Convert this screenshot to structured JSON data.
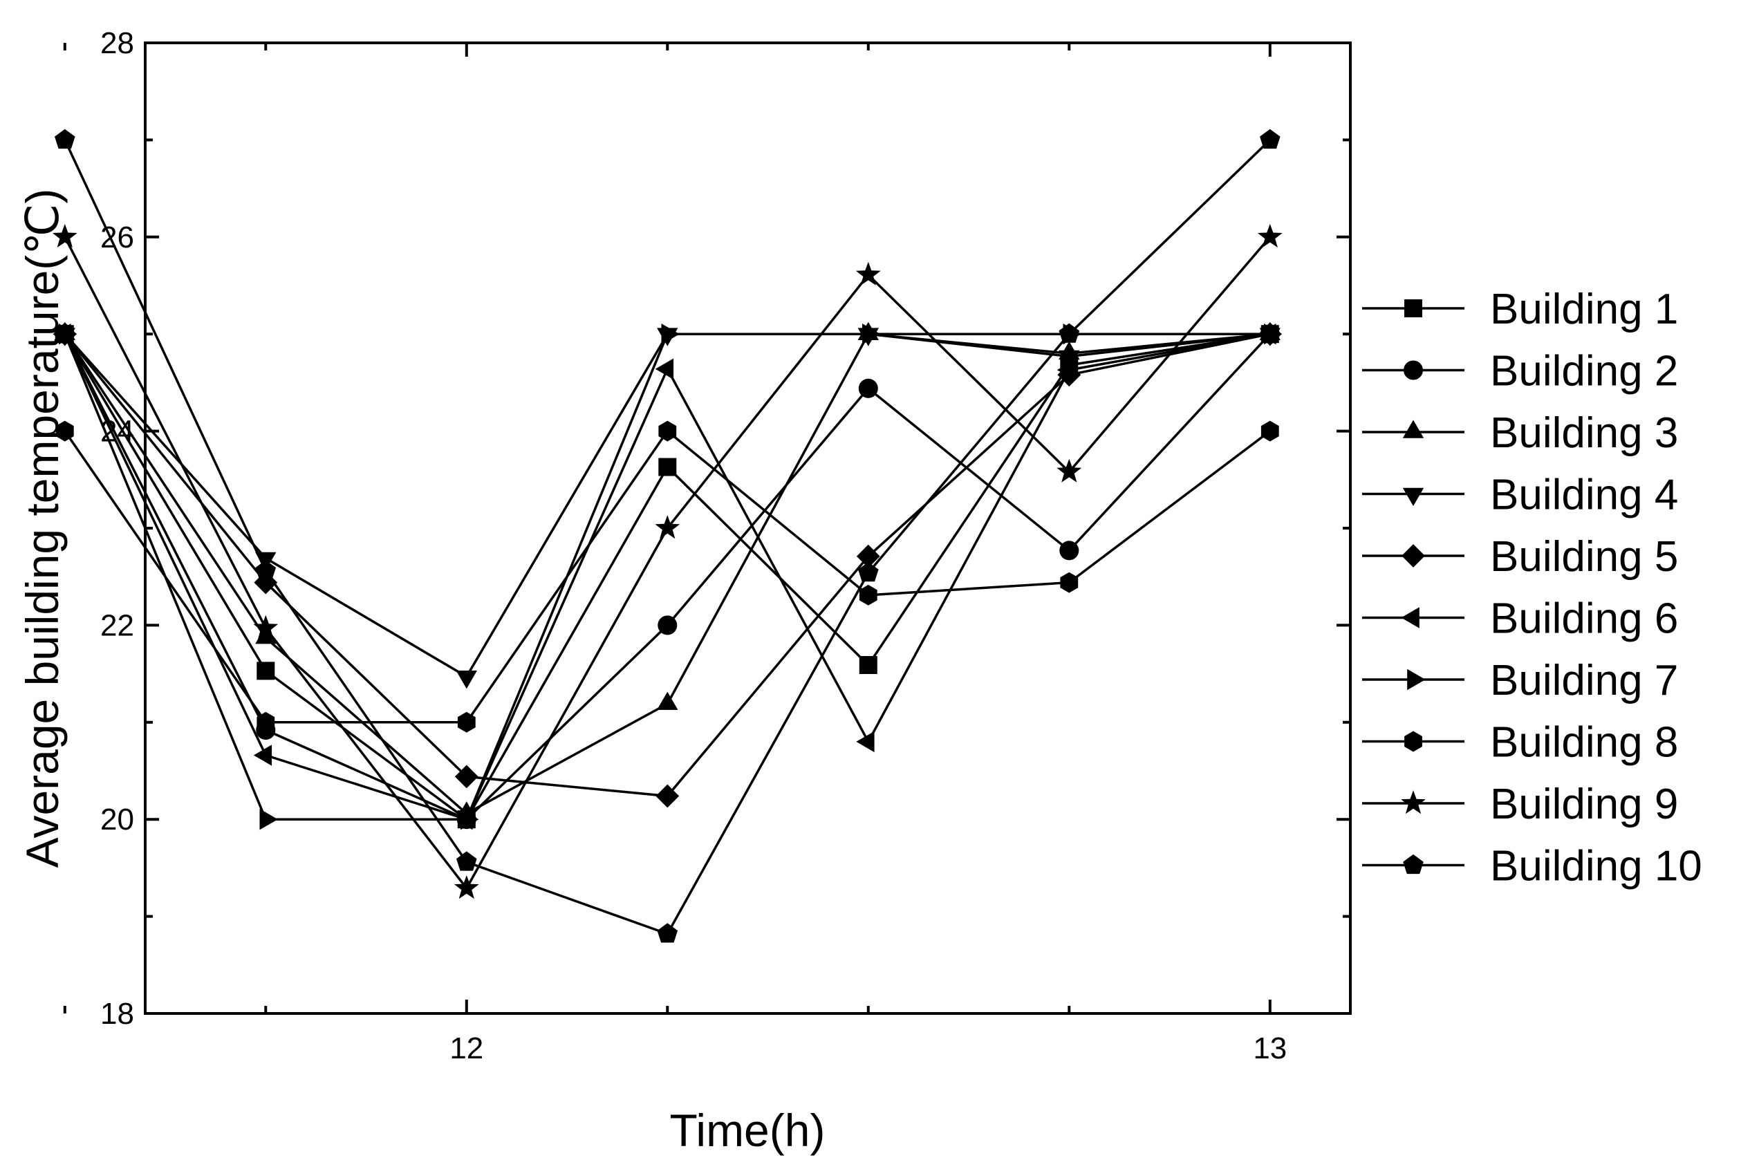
{
  "chart_data": {
    "type": "line",
    "title": "",
    "xlabel": "Time(h)",
    "ylabel": "Average building temperature(℃)",
    "xlim": [
      11.6,
      13.1
    ],
    "ylim": [
      18,
      28
    ],
    "x_ticks": [
      {
        "value": 12,
        "label": "12"
      },
      {
        "value": 13,
        "label": "13"
      }
    ],
    "y_ticks": [
      {
        "value": 18,
        "label": "18"
      },
      {
        "value": 20,
        "label": "20"
      },
      {
        "value": 22,
        "label": "22"
      },
      {
        "value": 24,
        "label": "24"
      },
      {
        "value": 26,
        "label": "26"
      },
      {
        "value": 28,
        "label": "28"
      }
    ],
    "grid": false,
    "legend_position": "right",
    "x": [
      11.5,
      11.75,
      12.0,
      12.25,
      12.5,
      12.75,
      13.0
    ],
    "series": [
      {
        "name": "Building 1",
        "marker": "square",
        "values": [
          25,
          21.53,
          20,
          23.63,
          21.59,
          24.68,
          25
        ]
      },
      {
        "name": "Building 2",
        "marker": "circle",
        "values": [
          25,
          20.92,
          20,
          22,
          24.44,
          22.77,
          25
        ]
      },
      {
        "name": "Building 3",
        "marker": "triangle-up",
        "values": [
          25,
          21.87,
          20.06,
          21.19,
          25,
          24.8,
          25
        ]
      },
      {
        "name": "Building 4",
        "marker": "triangle-down",
        "values": [
          25,
          22.69,
          21.47,
          25,
          25,
          24.77,
          25
        ]
      },
      {
        "name": "Building 5",
        "marker": "diamond",
        "values": [
          25,
          22.44,
          20.44,
          20.24,
          22.71,
          24.58,
          25
        ]
      },
      {
        "name": "Building 6",
        "marker": "triangle-left",
        "values": [
          25,
          20.66,
          20,
          24.64,
          20.8,
          24.63,
          25
        ]
      },
      {
        "name": "Building 7",
        "marker": "triangle-right",
        "values": [
          25,
          20,
          20,
          25,
          25,
          25,
          25
        ]
      },
      {
        "name": "Building 8",
        "marker": "hexagon",
        "values": [
          24,
          21,
          21,
          24,
          22.31,
          22.44,
          24
        ]
      },
      {
        "name": "Building 9",
        "marker": "star",
        "values": [
          26,
          21.97,
          19.29,
          23,
          25.61,
          23.58,
          26
        ]
      },
      {
        "name": "Building 10",
        "marker": "pentagon",
        "values": [
          27,
          22.56,
          19.56,
          18.82,
          22.54,
          25,
          27
        ]
      }
    ]
  }
}
